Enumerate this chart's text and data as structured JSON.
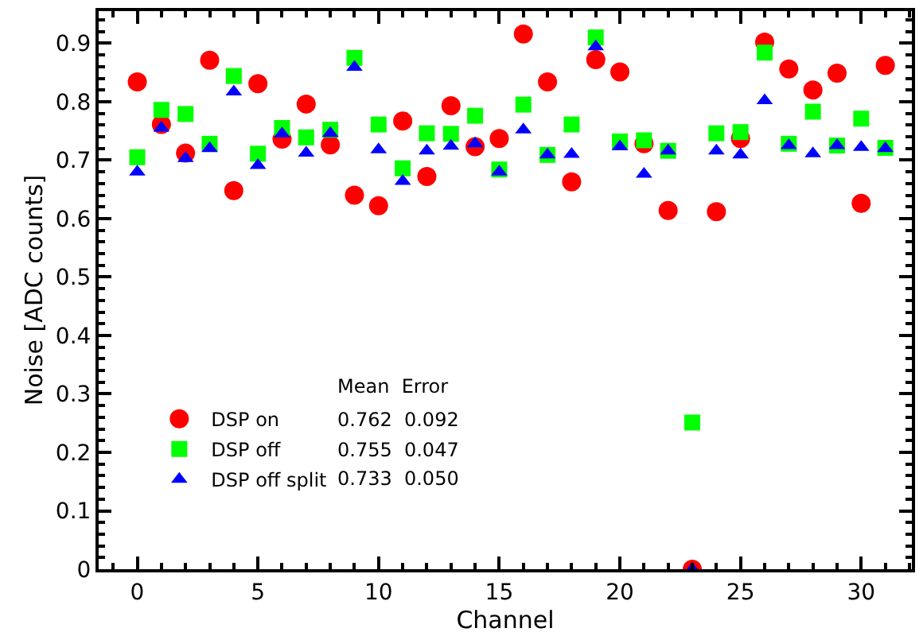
{
  "chart_data": {
    "type": "scatter",
    "xlabel": "Channel",
    "ylabel": "Noise [ADC counts]",
    "x": [
      0,
      1,
      2,
      3,
      4,
      5,
      6,
      7,
      8,
      9,
      10,
      11,
      12,
      13,
      14,
      15,
      16,
      17,
      18,
      19,
      20,
      21,
      22,
      23,
      24,
      25,
      26,
      27,
      28,
      29,
      30,
      31
    ],
    "series": [
      {
        "name": "DSP on",
        "color": "#ff0000",
        "marker": "circle",
        "values": [
          0.834,
          0.761,
          0.712,
          0.871,
          0.648,
          0.831,
          0.736,
          0.796,
          0.726,
          0.64,
          0.622,
          0.767,
          0.672,
          0.793,
          0.723,
          0.737,
          0.916,
          0.834,
          0.663,
          0.872,
          0.851,
          0.728,
          0.614,
          0.0,
          0.612,
          0.737,
          0.902,
          0.856,
          0.82,
          0.849,
          0.626,
          0.862
        ]
      },
      {
        "name": "DSP off",
        "color": "#00ff00",
        "marker": "square",
        "values": [
          0.705,
          0.786,
          0.779,
          0.728,
          0.844,
          0.711,
          0.755,
          0.739,
          0.752,
          0.875,
          0.761,
          0.686,
          0.746,
          0.745,
          0.776,
          0.684,
          0.795,
          0.709,
          0.761,
          0.91,
          0.732,
          0.734,
          0.716,
          0.251,
          0.746,
          0.748,
          0.884,
          0.728,
          0.783,
          0.725,
          0.771,
          0.721
        ]
      },
      {
        "name": "DSP off split",
        "color": "#0000ff",
        "marker": "triangle",
        "values": [
          0.68,
          0.755,
          0.703,
          0.72,
          0.817,
          0.691,
          0.745,
          0.712,
          0.746,
          0.859,
          0.718,
          0.664,
          0.716,
          0.724,
          0.728,
          0.68,
          0.752,
          0.709,
          0.71,
          0.894,
          0.723,
          0.676,
          0.716,
          0.0,
          0.716,
          0.709,
          0.802,
          0.725,
          0.711,
          0.725,
          0.722,
          0.72
        ]
      }
    ],
    "xlim": [
      -1.6,
      32.1
    ],
    "xticks": [
      0,
      5,
      10,
      15,
      20,
      25,
      30
    ],
    "ylim": [
      0,
      0.955
    ],
    "yticks": [
      0,
      0.1,
      0.2,
      0.3,
      0.4,
      0.5,
      0.6,
      0.7,
      0.8,
      0.9
    ],
    "legend": "bottom left",
    "annotations": [
      "Mean  Error",
      "0.762  0.092",
      "0.755  0.047",
      "0.733  0.050"
    ]
  }
}
